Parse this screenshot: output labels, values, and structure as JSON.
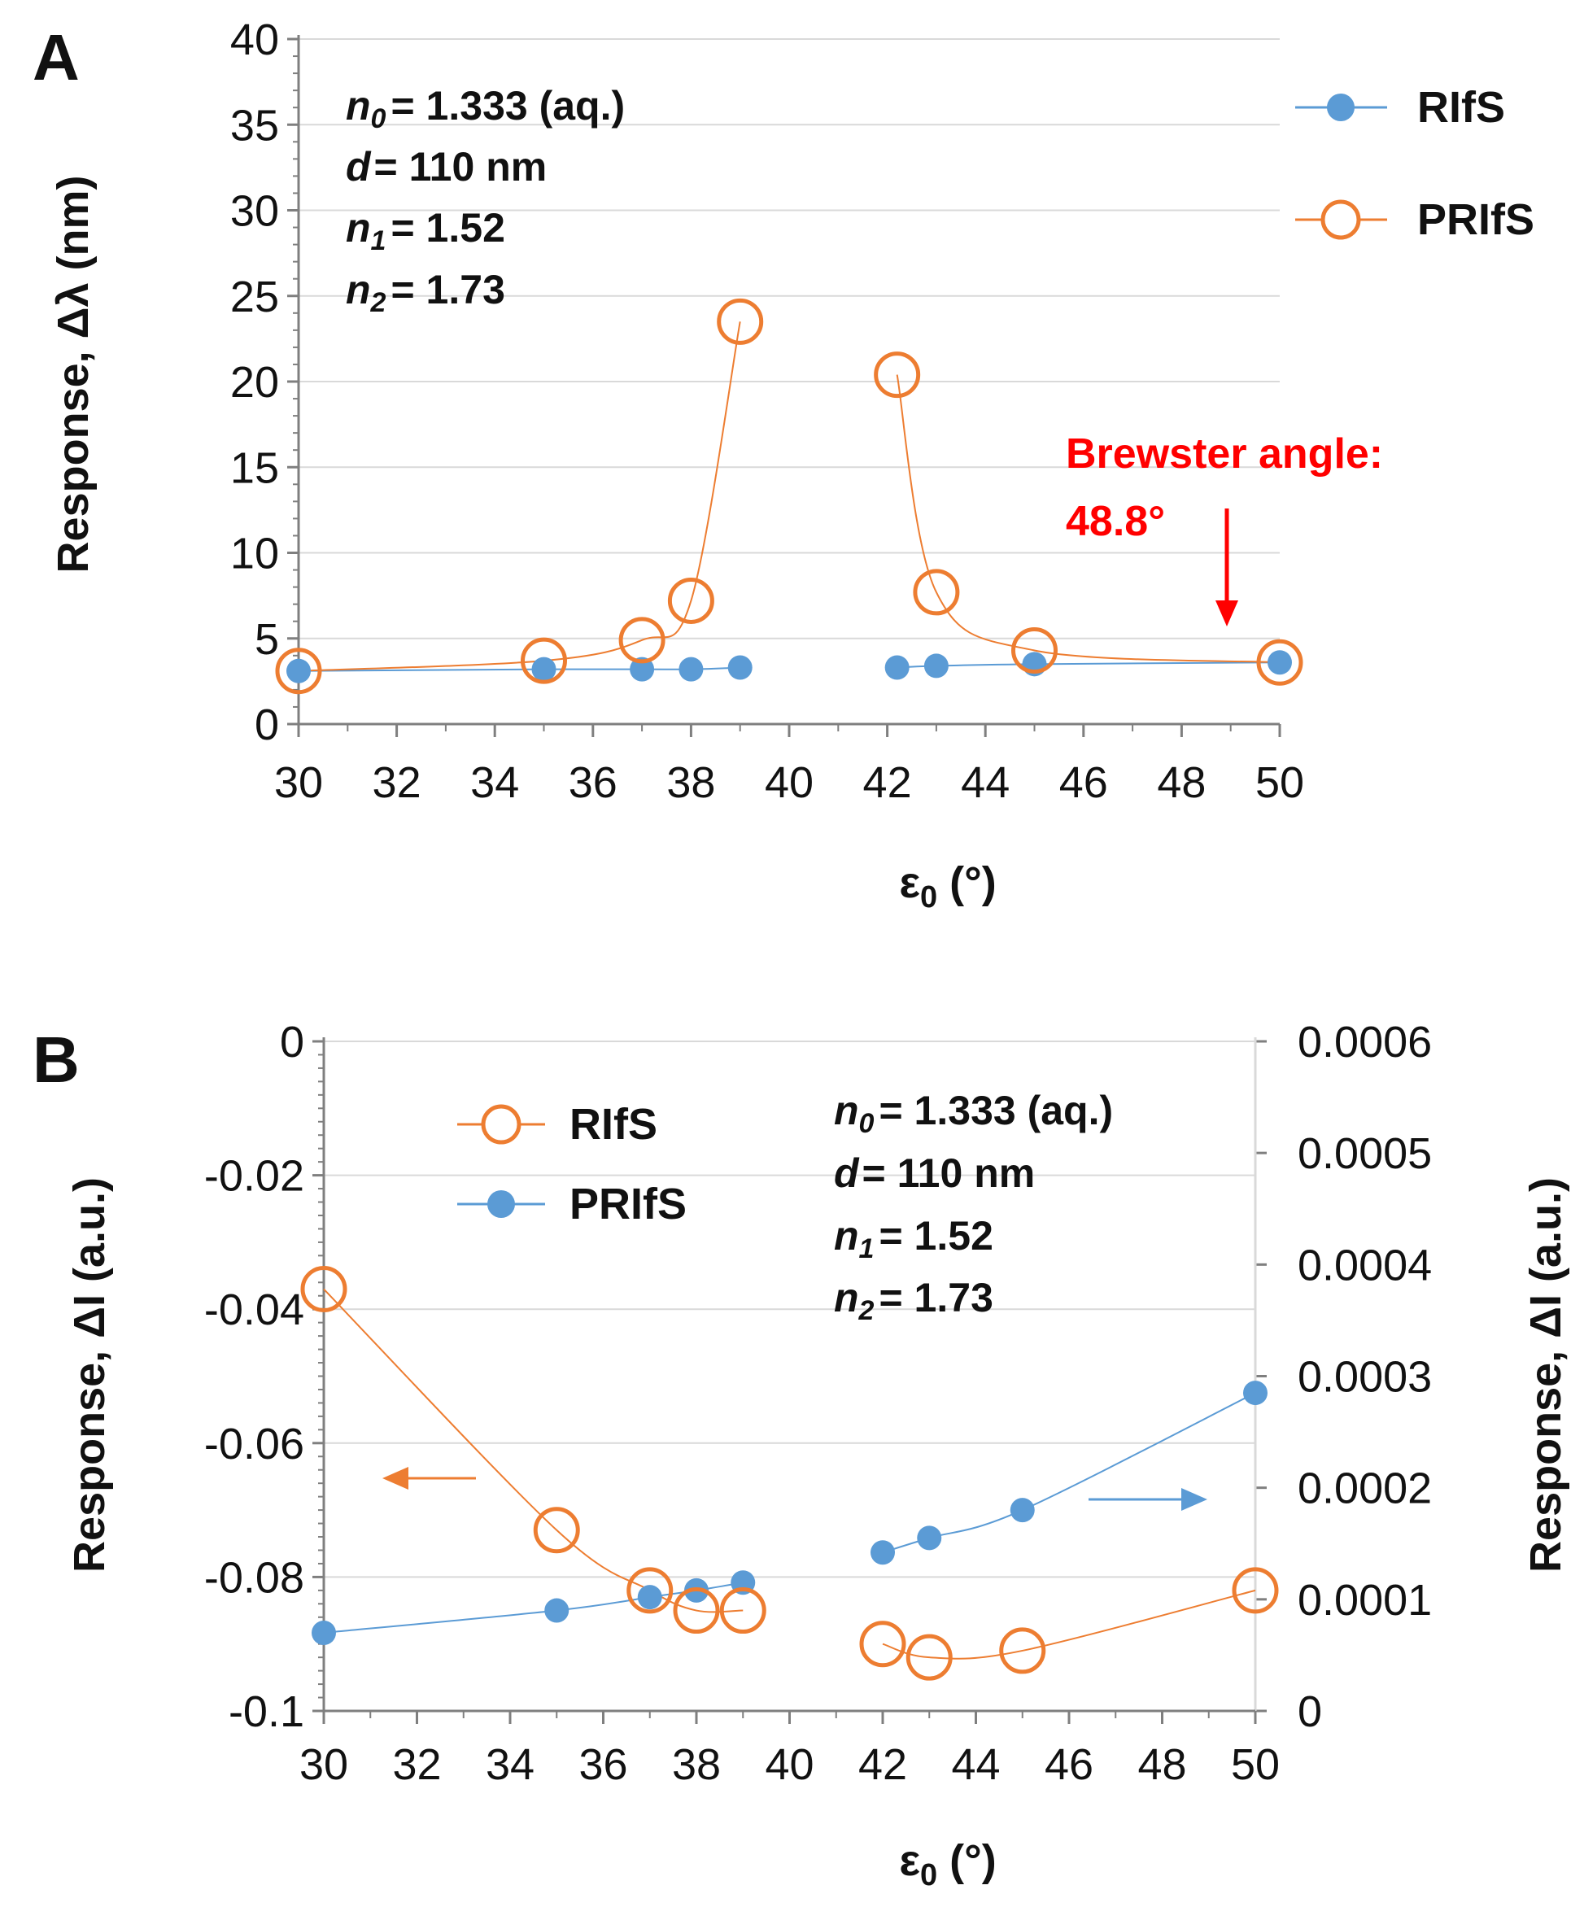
{
  "colors": {
    "orange": "#ed7d31",
    "blue": "#5b9bd5",
    "red": "#ff0000",
    "axis": "#7f7f7f",
    "grid": "#d9d9d9"
  },
  "panelA": {
    "label": "A",
    "legend": [
      "RIfS",
      "PRIfS"
    ],
    "annotations": {
      "n0": {
        "sym": "n",
        "sub": "0",
        "val": "= 1.333 (aq.)"
      },
      "d": {
        "sym": "d",
        "val": "= 110 nm"
      },
      "n1": {
        "sym": "n",
        "sub": "1",
        "val": "= 1.52"
      },
      "n2": {
        "sym": "n",
        "sub": "2",
        "val": "= 1.73"
      }
    },
    "brewster": {
      "line1": "Brewster angle:",
      "line2": "48.8°"
    }
  },
  "panelB": {
    "label": "B",
    "legend": [
      "RIfS",
      "PRIfS"
    ],
    "annotations": {
      "n0": {
        "sym": "n",
        "sub": "0",
        "val": "= 1.333 (aq.)"
      },
      "d": {
        "sym": "d",
        "val": "= 110 nm"
      },
      "n1": {
        "sym": "n",
        "sub": "1",
        "val": "= 1.52"
      },
      "n2": {
        "sym": "n",
        "sub": "2",
        "val": "= 1.73"
      }
    }
  },
  "chart_data": [
    {
      "type": "scatter",
      "title": "",
      "xlabel": "ε0 (°)",
      "xlabel_main": "ε",
      "xlabel_sub": "0",
      "xlabel_rest": " (°)",
      "ylabel": "Response, Δλ (nm)",
      "xlim": [
        30,
        50
      ],
      "ylim": [
        0,
        40
      ],
      "x_ticks": [
        "30",
        "32",
        "34",
        "36",
        "38",
        "40",
        "42",
        "44",
        "46",
        "48",
        "50"
      ],
      "y_ticks": [
        "0",
        "5",
        "10",
        "15",
        "20",
        "25",
        "30",
        "35",
        "40"
      ],
      "grid": true,
      "legend": "top-right",
      "series": [
        {
          "name": "RIfS",
          "marker": "filled-circle",
          "x": [
            30,
            35,
            37,
            38,
            39,
            42.2,
            43,
            45,
            50
          ],
          "y": [
            3.1,
            3.2,
            3.2,
            3.2,
            3.3,
            3.3,
            3.4,
            3.5,
            3.6
          ]
        },
        {
          "name": "PRIfS",
          "marker": "open-circle",
          "x": [
            30,
            35,
            37,
            38,
            39,
            42.2,
            43,
            45,
            50
          ],
          "y": [
            3.1,
            3.7,
            4.9,
            7.2,
            23.5,
            20.4,
            7.7,
            4.3,
            3.6
          ]
        }
      ]
    },
    {
      "type": "scatter",
      "title": "",
      "xlabel": "ε0 (°)",
      "xlabel_main": "ε",
      "xlabel_sub": "0",
      "xlabel_rest": " (°)",
      "ylabel": "Response, ΔI (a.u.)",
      "ylabel_right": "Response, ΔI (a.u.)",
      "xlim": [
        30,
        50
      ],
      "ylim": [
        -0.1,
        0
      ],
      "ylim_right": [
        0,
        0.0006
      ],
      "x_ticks": [
        "30",
        "32",
        "34",
        "36",
        "38",
        "40",
        "42",
        "44",
        "46",
        "48",
        "50"
      ],
      "y_ticks": [
        "-0.1",
        "-0.08",
        "-0.06",
        "-0.04",
        "-0.02",
        "0"
      ],
      "y_ticks_right": [
        "0",
        "0.0001",
        "0.0002",
        "0.0003",
        "0.0004",
        "0.0005",
        "0.0006"
      ],
      "grid": true,
      "legend": "top-left",
      "series": [
        {
          "name": "RIfS",
          "axis": "left",
          "marker": "open-circle",
          "x": [
            30,
            35,
            37,
            38,
            39,
            42,
            43,
            45,
            50
          ],
          "y": [
            -0.037,
            -0.073,
            -0.082,
            -0.085,
            -0.085,
            -0.09,
            -0.092,
            -0.091,
            -0.082
          ]
        },
        {
          "name": "PRIfS",
          "axis": "right",
          "marker": "filled-circle",
          "x": [
            30,
            35,
            37,
            38,
            39,
            42,
            43,
            45,
            50
          ],
          "y": [
            7e-05,
            9e-05,
            0.000102,
            0.000108,
            0.000115,
            0.000142,
            0.000155,
            0.00018,
            0.000285
          ]
        }
      ]
    }
  ]
}
